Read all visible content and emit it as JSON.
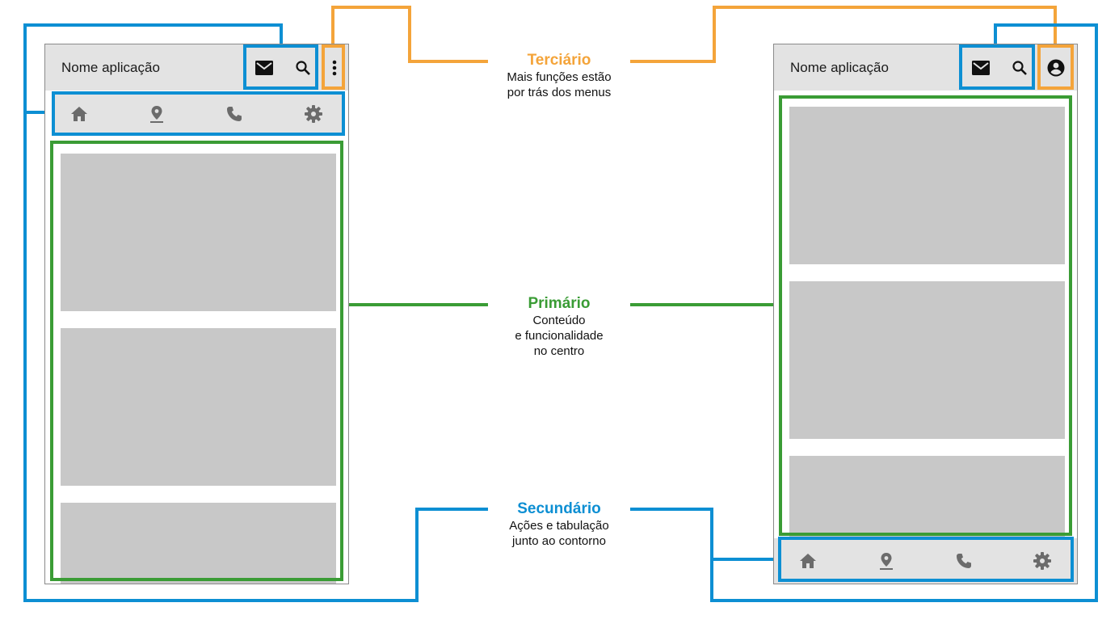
{
  "left_phone": {
    "app_name": "Nome aplicação",
    "action_icons": [
      "mail-icon",
      "search-icon"
    ],
    "overflow_icon": "more-vert-icon",
    "tabs": [
      "home-icon",
      "location-pin-icon",
      "phone-icon",
      "settings-icon"
    ],
    "cards": 3
  },
  "right_phone": {
    "app_name": "Nome aplicação",
    "action_icons": [
      "mail-icon",
      "search-icon"
    ],
    "account_icon": "account-circle-icon",
    "tabs": [
      "home-icon",
      "location-pin-icon",
      "phone-icon",
      "settings-icon"
    ],
    "cards": 3
  },
  "legend": {
    "tertiary": {
      "title": "Terciário",
      "lines": [
        "Mais funções estão",
        "por trás dos menus"
      ],
      "color": "#f4a43a"
    },
    "primary": {
      "title": "Primário",
      "lines": [
        "Conteúdo",
        "e funcionalidade",
        "no centro"
      ],
      "color": "#3a9c35"
    },
    "secondary": {
      "title": "Secundário",
      "lines": [
        "Ações e tabulação",
        "junto ao contorno"
      ],
      "color": "#0d8fd3"
    }
  },
  "colors": {
    "secondary_blue": "#0d8fd3",
    "primary_green": "#3a9c35",
    "tertiary_orange": "#f4a43a",
    "bar_gray": "#e3e3e3",
    "card_gray": "#c8c8c8",
    "icon_dark": "#111111",
    "tab_icon_gray": "#6b6b6b"
  }
}
